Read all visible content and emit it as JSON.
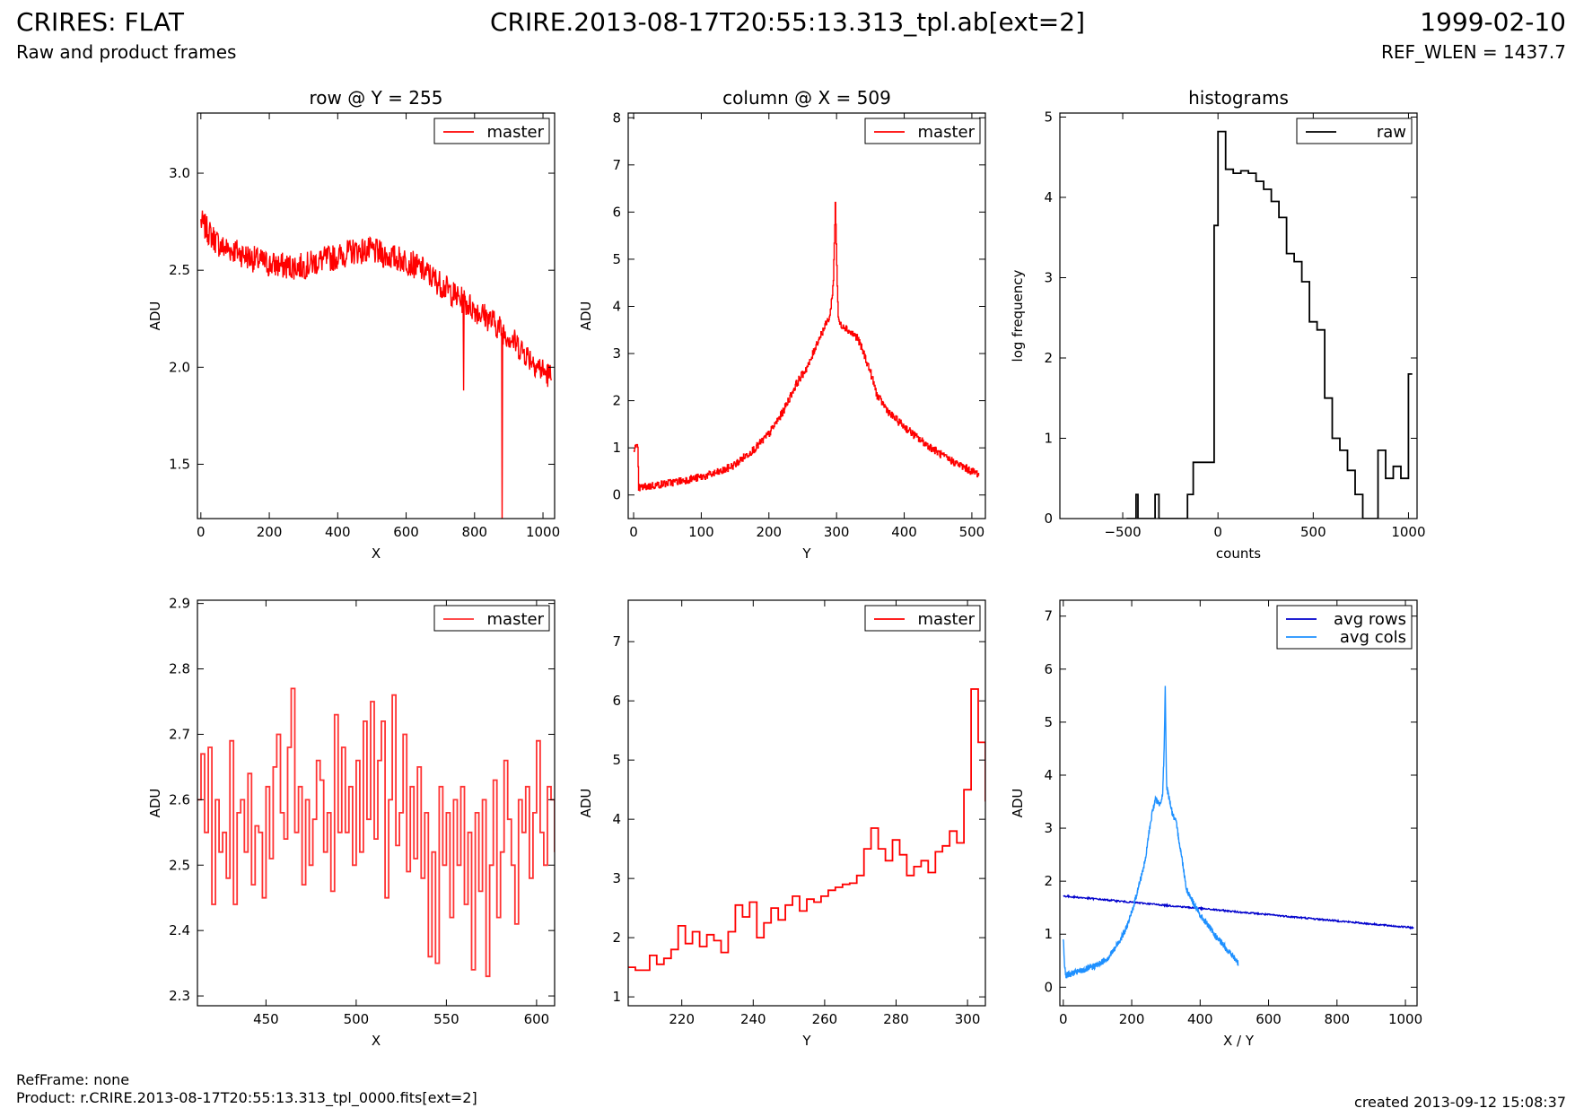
{
  "header": {
    "title": "CRIRES: FLAT",
    "subtitle": "Raw and product frames",
    "file": "CRIRE.2013-08-17T20:55:13.313_tpl.ab[ext=2]",
    "date": "1999-02-10",
    "ref_wlen": "REF_WLEN = 1437.7"
  },
  "footer": {
    "ref_frame": "RefFrame: none",
    "product": "Product: r.CRIRE.2013-08-17T20:55:13.313_tpl_0000.fits[ext=2]",
    "created": "created 2013-09-12 15:08:37"
  },
  "colors": {
    "red": "#ff0000",
    "light_red": "#ff3333",
    "black": "#000000",
    "dark_blue": "#0000cc",
    "light_blue": "#1e90ff"
  },
  "chart_data": [
    {
      "type": "line",
      "title": "row @ Y = 255",
      "xlabel": "X",
      "ylabel": "ADU",
      "xlim": [
        -10,
        1034
      ],
      "ylim": [
        1.22,
        3.31
      ],
      "xticks": [
        0,
        200,
        400,
        600,
        800,
        1000
      ],
      "yticks": [
        1.5,
        2.0,
        2.5,
        3.0
      ],
      "ytick_labels": [
        "1.5",
        "2.0",
        "2.5",
        "3.0"
      ],
      "legend": [
        "master"
      ],
      "legend_loc": "upper right",
      "series": [
        {
          "name": "master",
          "color": "#ff0000",
          "step": false,
          "x": [
            0,
            30,
            60,
            100,
            150,
            200,
            250,
            300,
            350,
            400,
            450,
            500,
            550,
            600,
            650,
            700,
            750,
            800,
            850,
            900,
            950,
            1000,
            1024
          ],
          "y": [
            2.75,
            2.68,
            2.62,
            2.6,
            2.56,
            2.53,
            2.52,
            2.52,
            2.55,
            2.57,
            2.6,
            2.6,
            2.57,
            2.55,
            2.5,
            2.43,
            2.36,
            2.3,
            2.24,
            2.16,
            2.07,
            1.98,
            1.95
          ],
          "noise": 0.07,
          "spikes": [
            [
              768,
              1.88
            ],
            [
              880,
              1.22
            ]
          ]
        }
      ]
    },
    {
      "type": "line",
      "title": "column @ X = 509",
      "xlabel": "Y",
      "ylabel": "ADU",
      "xlim": [
        -8,
        520
      ],
      "ylim": [
        -0.5,
        8.1
      ],
      "xticks": [
        0,
        100,
        200,
        300,
        400,
        500
      ],
      "yticks": [
        0,
        1,
        2,
        3,
        4,
        5,
        6,
        7,
        8
      ],
      "legend": [
        "master"
      ],
      "legend_loc": "upper right",
      "series": [
        {
          "name": "master",
          "color": "#ff0000",
          "step": true,
          "x": [
            0,
            6,
            7,
            20,
            50,
            100,
            130,
            150,
            180,
            200,
            220,
            240,
            260,
            270,
            280,
            290,
            295,
            298,
            300,
            302,
            305,
            310,
            320,
            330,
            340,
            350,
            360,
            380,
            400,
            420,
            440,
            460,
            480,
            500,
            510
          ],
          "y": [
            1.0,
            1.0,
            0.15,
            0.18,
            0.25,
            0.38,
            0.5,
            0.65,
            1.0,
            1.3,
            1.75,
            2.35,
            2.8,
            3.2,
            3.5,
            3.8,
            4.5,
            6.2,
            5.0,
            3.8,
            3.6,
            3.6,
            3.45,
            3.35,
            3.0,
            2.6,
            2.1,
            1.7,
            1.45,
            1.2,
            1.0,
            0.8,
            0.65,
            0.5,
            0.45
          ],
          "noise": 0.08
        }
      ]
    },
    {
      "type": "line",
      "title": "histograms",
      "xlabel": "counts",
      "ylabel": "log frequency",
      "xlim": [
        -830,
        1045
      ],
      "ylim": [
        0,
        5.05
      ],
      "xticks": [
        -500,
        0,
        500,
        1000
      ],
      "xtick_labels": [
        "−500",
        "0",
        "500",
        "1000"
      ],
      "yticks": [
        0,
        1,
        2,
        3,
        4,
        5
      ],
      "legend": [
        "raw"
      ],
      "legend_loc": "upper right",
      "series": [
        {
          "name": "raw",
          "color": "#000000",
          "step": true,
          "x": [
            -480,
            -430,
            -420,
            -380,
            -330,
            -310,
            -200,
            -160,
            -130,
            -60,
            -20,
            0,
            40,
            80,
            120,
            160,
            200,
            240,
            280,
            320,
            360,
            400,
            440,
            480,
            520,
            560,
            600,
            640,
            680,
            720,
            760,
            800,
            840,
            880,
            920,
            960,
            1000,
            1020
          ],
          "y": [
            0,
            0.3,
            0,
            0,
            0.3,
            0,
            0,
            0.3,
            0.7,
            0.7,
            3.65,
            4.82,
            4.35,
            4.3,
            4.33,
            4.3,
            4.2,
            4.1,
            3.95,
            3.75,
            3.3,
            3.2,
            2.95,
            2.45,
            2.35,
            1.5,
            1.0,
            0.85,
            0.6,
            0.3,
            0,
            0,
            0.85,
            0.5,
            0.65,
            0.5,
            1.8,
            1.8
          ]
        }
      ]
    },
    {
      "type": "line",
      "title": "",
      "xlabel": "X",
      "ylabel": "ADU",
      "xlim": [
        412,
        610
      ],
      "ylim": [
        2.285,
        2.905
      ],
      "xticks": [
        450,
        500,
        550,
        600
      ],
      "yticks": [
        2.3,
        2.4,
        2.5,
        2.6,
        2.7,
        2.8,
        2.9
      ],
      "ytick_labels": [
        "2.3",
        "2.4",
        "2.5",
        "2.6",
        "2.7",
        "2.8",
        "2.9"
      ],
      "legend": [
        "master"
      ],
      "legend_loc": "upper right",
      "series": [
        {
          "name": "master",
          "color": "#ff3333",
          "step": true,
          "x": [
            412,
            414,
            416,
            418,
            420,
            422,
            424,
            426,
            428,
            430,
            432,
            434,
            436,
            438,
            440,
            442,
            444,
            446,
            448,
            450,
            452,
            454,
            456,
            458,
            460,
            462,
            464,
            466,
            468,
            470,
            472,
            474,
            476,
            478,
            480,
            482,
            484,
            486,
            488,
            490,
            492,
            494,
            496,
            498,
            500,
            502,
            504,
            506,
            508,
            510,
            512,
            514,
            516,
            518,
            520,
            522,
            524,
            526,
            528,
            530,
            532,
            534,
            536,
            538,
            540,
            542,
            544,
            546,
            548,
            550,
            552,
            554,
            556,
            558,
            560,
            562,
            564,
            566,
            568,
            570,
            572,
            574,
            576,
            578,
            580,
            582,
            584,
            586,
            588,
            590,
            592,
            594,
            596,
            598,
            600,
            602,
            604,
            606,
            608,
            610
          ],
          "y": [
            2.6,
            2.67,
            2.55,
            2.68,
            2.44,
            2.6,
            2.52,
            2.55,
            2.48,
            2.69,
            2.44,
            2.58,
            2.6,
            2.52,
            2.64,
            2.47,
            2.56,
            2.55,
            2.45,
            2.62,
            2.51,
            2.65,
            2.7,
            2.58,
            2.54,
            2.68,
            2.77,
            2.55,
            2.62,
            2.47,
            2.6,
            2.5,
            2.57,
            2.66,
            2.63,
            2.52,
            2.58,
            2.46,
            2.73,
            2.55,
            2.68,
            2.55,
            2.62,
            2.5,
            2.66,
            2.52,
            2.72,
            2.57,
            2.75,
            2.54,
            2.66,
            2.72,
            2.45,
            2.6,
            2.76,
            2.53,
            2.58,
            2.7,
            2.49,
            2.62,
            2.51,
            2.65,
            2.48,
            2.58,
            2.36,
            2.52,
            2.35,
            2.62,
            2.5,
            2.58,
            2.42,
            2.6,
            2.5,
            2.62,
            2.44,
            2.55,
            2.34,
            2.58,
            2.46,
            2.6,
            2.33,
            2.5,
            2.63,
            2.42,
            2.52,
            2.66,
            2.57,
            2.5,
            2.41,
            2.6,
            2.55,
            2.62,
            2.48,
            2.58,
            2.69,
            2.55,
            2.5,
            2.62,
            2.6,
            2.52
          ]
        }
      ]
    },
    {
      "type": "line",
      "title": "",
      "xlabel": "Y",
      "ylabel": "ADU",
      "xlim": [
        205,
        305
      ],
      "ylim": [
        0.85,
        7.7
      ],
      "xticks": [
        220,
        240,
        260,
        280,
        300
      ],
      "yticks": [
        1,
        2,
        3,
        4,
        5,
        6,
        7
      ],
      "legend": [
        "master"
      ],
      "legend_loc": "upper right",
      "series": [
        {
          "name": "master",
          "color": "#ff0000",
          "step": true,
          "x": [
            205,
            207,
            209,
            211,
            213,
            215,
            217,
            219,
            221,
            223,
            225,
            227,
            229,
            231,
            233,
            235,
            237,
            239,
            241,
            243,
            245,
            247,
            249,
            251,
            253,
            255,
            257,
            259,
            261,
            263,
            265,
            267,
            269,
            271,
            273,
            275,
            277,
            279,
            281,
            283,
            285,
            287,
            289,
            291,
            293,
            295,
            297,
            299,
            301,
            303,
            305
          ],
          "y": [
            1.5,
            1.45,
            1.45,
            1.7,
            1.55,
            1.65,
            1.8,
            2.2,
            1.9,
            2.1,
            1.85,
            2.05,
            1.95,
            1.75,
            2.1,
            2.55,
            2.35,
            2.6,
            2.0,
            2.25,
            2.5,
            2.3,
            2.55,
            2.7,
            2.45,
            2.65,
            2.6,
            2.7,
            2.8,
            2.85,
            2.9,
            2.92,
            3.05,
            3.5,
            3.85,
            3.5,
            3.3,
            3.65,
            3.4,
            3.05,
            3.2,
            3.3,
            3.1,
            3.45,
            3.55,
            3.8,
            3.6,
            4.5,
            6.2,
            5.3,
            4.3
          ]
        }
      ]
    },
    {
      "type": "line",
      "title": "",
      "xlabel": "X / Y",
      "ylabel": "ADU",
      "xlim": [
        -10,
        1034
      ],
      "ylim": [
        -0.35,
        7.3
      ],
      "xticks": [
        0,
        200,
        400,
        600,
        800,
        1000
      ],
      "yticks": [
        0,
        1,
        2,
        3,
        4,
        5,
        6,
        7
      ],
      "legend": [
        "avg rows",
        "avg cols"
      ],
      "legend_loc": "upper right",
      "series": [
        {
          "name": "avg rows",
          "color": "#0000cc",
          "step": false,
          "x": [
            0,
            1024
          ],
          "y": [
            1.72,
            1.12
          ],
          "noise": 0.015
        },
        {
          "name": "avg cols",
          "color": "#1e90ff",
          "step": false,
          "x": [
            0,
            4,
            8,
            20,
            50,
            100,
            130,
            150,
            180,
            200,
            220,
            240,
            250,
            260,
            270,
            280,
            290,
            295,
            298,
            300,
            302,
            305,
            310,
            320,
            330,
            340,
            350,
            360,
            380,
            400,
            420,
            440,
            460,
            480,
            500,
            511
          ],
          "y": [
            0.9,
            0.4,
            0.22,
            0.25,
            0.3,
            0.42,
            0.55,
            0.72,
            1.05,
            1.4,
            1.9,
            2.4,
            2.9,
            3.3,
            3.55,
            3.45,
            3.6,
            4.5,
            5.7,
            4.6,
            3.8,
            3.7,
            3.55,
            3.25,
            3.1,
            2.7,
            2.3,
            1.85,
            1.6,
            1.35,
            1.2,
            1.0,
            0.85,
            0.7,
            0.55,
            0.45
          ],
          "noise": 0.06
        }
      ]
    }
  ]
}
